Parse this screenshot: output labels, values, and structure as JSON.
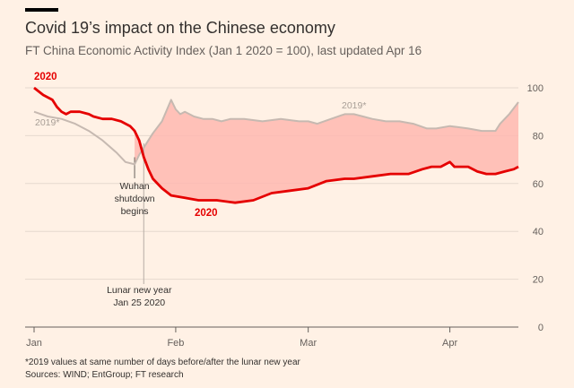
{
  "header": {
    "title": "Covid 19’s impact on the Chinese economy",
    "subtitle": "FT China Economic Activity Index (Jan 1 2020 = 100), last updated Apr 16"
  },
  "footer": {
    "note": "*2019 values at same number of days before/after the lunar new year",
    "sources": "Sources: WIND; EntGroup; FT research"
  },
  "colors": {
    "background": "#FFF1E5",
    "series_2020": "#E50000",
    "series_2019": "#C6B9B1",
    "gap_fill": "#FFB8B0"
  },
  "chart_data": {
    "type": "line",
    "title": "Covid 19’s impact on the Chinese economy",
    "subtitle": "FT China Economic Activity Index (Jan 1 2020 = 100), last updated Apr 16",
    "x_unit": "days since Jan 1 2020",
    "xlim": [
      0,
      106
    ],
    "ylim": [
      0,
      100
    ],
    "y_ticks": [
      0,
      20,
      40,
      60,
      80,
      100
    ],
    "y_axis_position": "right",
    "x_ticks": [
      {
        "day": 0,
        "label": "Jan"
      },
      {
        "day": 31,
        "label": "Feb"
      },
      {
        "day": 60,
        "label": "Mar"
      },
      {
        "day": 91,
        "label": "Apr"
      }
    ],
    "grid": true,
    "fill_between_series": true,
    "series": [
      {
        "name": "2019*",
        "label_2019_left": "2019*",
        "label_2019_right": "2019*",
        "x": [
          0,
          3,
          6,
          9,
          12,
          15,
          18,
          20,
          22,
          23,
          24,
          25,
          26,
          28,
          30,
          31,
          32,
          33,
          35,
          37,
          39,
          41,
          43,
          46,
          50,
          54,
          58,
          60,
          62,
          65,
          68,
          70,
          72,
          74,
          77,
          80,
          83,
          86,
          88,
          91,
          95,
          98,
          101,
          102,
          104,
          106
        ],
        "values": [
          90,
          88,
          87,
          85,
          82,
          78,
          73,
          69,
          68,
          72,
          75,
          78,
          81,
          86,
          95,
          91,
          89,
          90,
          88,
          87,
          87,
          86,
          87,
          87,
          86,
          87,
          86,
          86,
          85,
          87,
          89,
          89,
          88,
          87,
          86,
          86,
          85,
          83,
          83,
          84,
          83,
          82,
          82,
          85,
          89,
          94
        ]
      },
      {
        "name": "2020",
        "label_2020_top": "2020",
        "label_2020_mid": "2020",
        "x": [
          0,
          2,
          4,
          5,
          6,
          7,
          8,
          10,
          12,
          13,
          15,
          17,
          19,
          21,
          22,
          23,
          24,
          25,
          26,
          28,
          30,
          33,
          36,
          40,
          44,
          48,
          52,
          56,
          60,
          64,
          68,
          70,
          74,
          78,
          82,
          85,
          87,
          89,
          91,
          92,
          93,
          95,
          97,
          99,
          101,
          103,
          105,
          106
        ],
        "values": [
          100,
          97,
          95,
          92,
          90,
          89,
          90,
          90,
          89,
          88,
          87,
          87,
          86,
          84,
          82,
          78,
          71,
          66,
          62,
          58,
          55,
          54,
          53,
          53,
          52,
          53,
          56,
          57,
          58,
          61,
          62,
          62,
          63,
          64,
          64,
          66,
          67,
          67,
          69,
          67,
          67,
          67,
          65,
          64,
          64,
          65,
          66,
          67
        ]
      }
    ],
    "annotations": [
      {
        "day": 22,
        "line1": "Wuhan",
        "line2": "shutdown",
        "line3": "begins"
      },
      {
        "day": 24,
        "line1": "Lunar new year",
        "line2": "Jan 25 2020"
      }
    ]
  }
}
